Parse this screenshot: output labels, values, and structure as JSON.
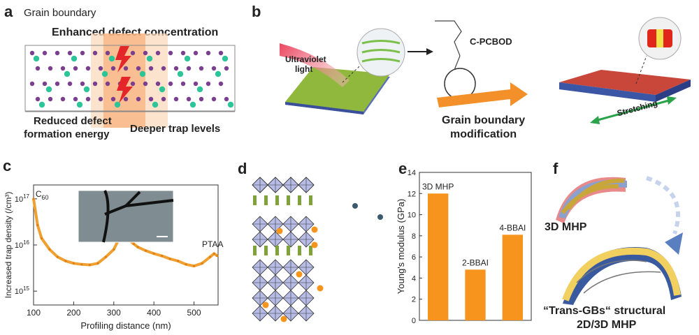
{
  "panel_a": {
    "label": "a",
    "title": "Grain boundary",
    "header": "Enhanced defect concentration",
    "bottom_left": "Reduced defect formation energy",
    "bottom_left_line1": "Reduced defect",
    "bottom_left_line2": "formation energy",
    "bottom_right": "Deeper trap levels"
  },
  "panel_b": {
    "label": "b",
    "uv_line1": "Ultraviolet",
    "uv_line2": "light",
    "molecule": "C-PCBOD",
    "arrow_line1": "Grain boundary",
    "arrow_line2": "modification",
    "stretch": "Stretching"
  },
  "panel_c": {
    "label": "c"
  },
  "panel_d": {
    "label": "d"
  },
  "panel_e": {
    "label": "e"
  },
  "panel_f": {
    "label": "f",
    "top_caption": "3D MHP",
    "bottom_line1": "“Trans-GBs“ structural",
    "bottom_line2": "2D/3D MHP"
  },
  "colors": {
    "orange": "#f7941d",
    "trace": "#f0a030",
    "green": "#7fa33a",
    "blue_octa": "#b7bce6",
    "teal": "#2ec49a",
    "purple": "#7a3f8f",
    "red": "#d9302c"
  },
  "chart_data": [
    {
      "type": "line",
      "panel": "c",
      "xlabel": "Profiling distance (nm)",
      "ylabel": "Increased trap density (/cm3)",
      "ylabel_display": "Increased trap density (/cm³)",
      "xlim": [
        100,
        560
      ],
      "ylim_log10": [
        14.7,
        17.3
      ],
      "y_scale": "log",
      "x_ticks": [
        100,
        200,
        300,
        400,
        500
      ],
      "y_ticks": [
        {
          "value": 1000000000000000.0,
          "label_base": "10",
          "label_exp": "15"
        },
        {
          "value": 1e+16,
          "label_base": "10",
          "label_exp": "16"
        },
        {
          "value": 1e+17,
          "label_base": "10",
          "label_exp": "17"
        }
      ],
      "annotations": [
        {
          "text": "C",
          "sub": "60",
          "x": 105,
          "y": 1.1e+17
        },
        {
          "text": "PTAA",
          "x": 520,
          "y": 9000000000000000.0
        }
      ],
      "grid": false,
      "series": [
        {
          "x": [
            100,
            110,
            120,
            140,
            160,
            180,
            200,
            220,
            240,
            260,
            280,
            300,
            310,
            320,
            330,
            340,
            350,
            360,
            380,
            400,
            420,
            440,
            460,
            480,
            500,
            520,
            540,
            550,
            558
          ],
          "y": [
            1e+17,
            2.7e+16,
            1.4e+16,
            8000000000000000.0,
            5500000000000000.0,
            4500000000000000.0,
            4000000000000000.0,
            3800000000000000.0,
            3700000000000000.0,
            4000000000000000.0,
            5500000000000000.0,
            8000000000000000.0,
            1.2e+16,
            1.75e+16,
            1.5e+16,
            1.25e+16,
            1.05e+16,
            9000000000000000.0,
            7500000000000000.0,
            6500000000000000.0,
            5800000000000000.0,
            5000000000000000.0,
            4500000000000000.0,
            3800000000000000.0,
            3500000000000000.0,
            4000000000000000.0,
            5500000000000000.0,
            6500000000000000.0,
            5800000000000000.0
          ]
        }
      ]
    },
    {
      "type": "bar",
      "panel": "e",
      "ylabel": "Young's modulus (GPa)",
      "ylim": [
        0,
        14
      ],
      "y_ticks": [
        0,
        2,
        4,
        6,
        8,
        10,
        12,
        14
      ],
      "categories": [
        "3D MHP",
        "2-BBAI",
        "4-BBAI"
      ],
      "values": [
        12.0,
        4.8,
        8.1
      ],
      "grid": false
    }
  ]
}
